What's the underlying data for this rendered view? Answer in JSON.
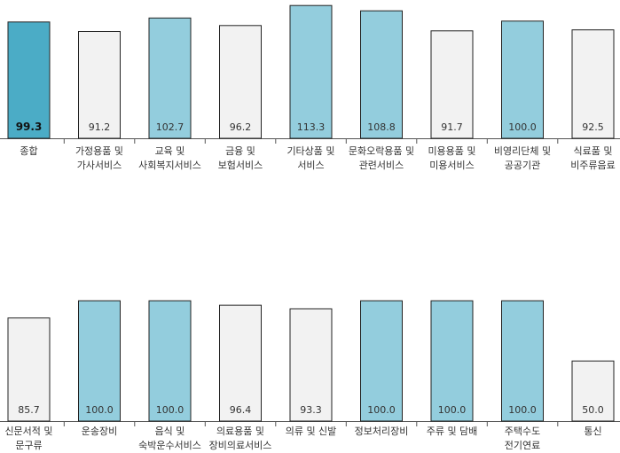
{
  "chart_data": [
    {
      "type": "bar",
      "categories": [
        "종합",
        "가정용품 및\n가사서비스",
        "교육 및\n사회복지서비스",
        "금융 및\n보험서비스",
        "기타상품 및\n서비스",
        "문화오락용품 및\n관련서비스",
        "미용용품 및\n미용서비스",
        "비영리단체 및\n공공기관",
        "식료품 및\n비주류음료"
      ],
      "values": [
        99.3,
        91.2,
        102.7,
        96.2,
        113.3,
        108.8,
        91.7,
        100.0,
        92.5
      ],
      "value_labels": [
        "99.3",
        "91.2",
        "102.7",
        "96.2",
        "113.3",
        "108.8",
        "91.7",
        "100.0",
        "92.5"
      ],
      "highlight": [
        true,
        false,
        true,
        false,
        true,
        true,
        false,
        true,
        false
      ],
      "emphasis_index": 0,
      "ylim": [
        0,
        115
      ]
    },
    {
      "type": "bar",
      "categories": [
        "신문서적 및\n문구류",
        "운송장비",
        "음식 및\n숙박운수서비스",
        "의료용품 및\n장비의료서비스",
        "의류 및 신발",
        "정보처리장비",
        "주류 및 담배",
        "주택수도\n전기연료",
        "통신"
      ],
      "values": [
        85.7,
        100.0,
        100.0,
        96.4,
        93.3,
        100.0,
        100.0,
        100.0,
        50.0
      ],
      "value_labels": [
        "85.7",
        "100.0",
        "100.0",
        "96.4",
        "93.3",
        "100.0",
        "100.0",
        "100.0",
        "50.0"
      ],
      "highlight": [
        false,
        true,
        true,
        false,
        false,
        true,
        true,
        true,
        false
      ],
      "emphasis_index": -1,
      "ylim": [
        0,
        115
      ]
    }
  ],
  "colors": {
    "highlight_fill": "#93cddd",
    "emphasis_fill": "#4bacc6",
    "plain_fill": "#f2f2f2",
    "bar_stroke": "#222222",
    "axis": "#555555"
  }
}
